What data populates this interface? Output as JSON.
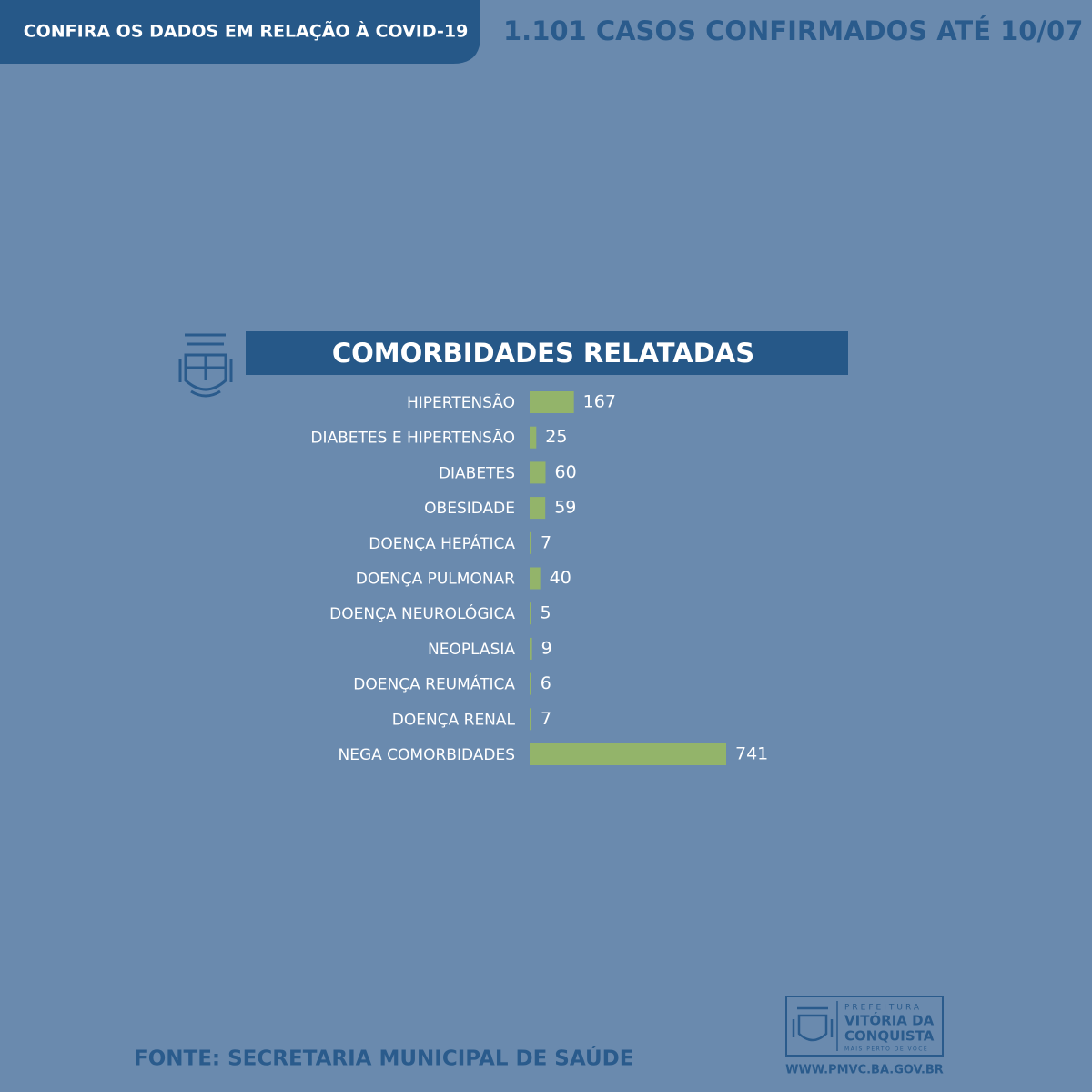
{
  "header": {
    "badge": "CONFIRA OS DADOS EM RELAÇÃO À COVID-19",
    "headline": "1.101 CASOS CONFIRMADOS ATÉ 10/07"
  },
  "chart_data": {
    "type": "bar",
    "orientation": "horizontal",
    "title": "COMORBIDADES RELATADAS",
    "categories": [
      "HIPERTENSÃO",
      "DIABETES E HIPERTENSÃO",
      "DIABETES",
      "OBESIDADE",
      "DOENÇA HEPÁTICA",
      "DOENÇA PULMONAR",
      "DOENÇA NEUROLÓGICA",
      "NEOPLASIA",
      "DOENÇA REUMÁTICA",
      "DOENÇA RENAL",
      "NEGA COMORBIDADES"
    ],
    "values": [
      167,
      25,
      60,
      59,
      7,
      40,
      5,
      9,
      6,
      7,
      741
    ],
    "color": "#93b46a"
  },
  "footer": {
    "source": "FONTE: SECRETARIA MUNICIPAL DE SAÚDE"
  },
  "logo": {
    "line1": "PREFEITURA",
    "line2": "VITÓRIA DA",
    "line3": "CONQUISTA",
    "slogan": "MAIS PERTO DE VOCÊ",
    "url": "WWW.PMVC.BA.GOV.BR"
  }
}
